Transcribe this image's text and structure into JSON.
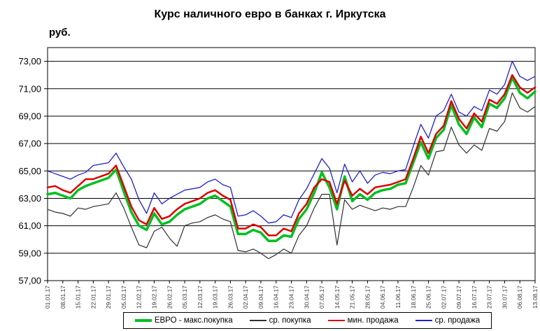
{
  "page": {
    "title": "Курс наличного евро в банках г. Иркутска",
    "y_axis_unit": "руб."
  },
  "chart_data": {
    "type": "line",
    "title": "Курс наличного евро в банках г. Иркутска",
    "xlabel": "",
    "ylabel": "руб.",
    "ylim": [
      57,
      74
    ],
    "ytick_step": 2,
    "grid": true,
    "legend_position": "bottom",
    "points_per_tick_interval": 2,
    "ytick_labels": [
      "57,00",
      "59,00",
      "61,00",
      "63,00",
      "65,00",
      "67,00",
      "69,00",
      "71,00",
      "73,00"
    ],
    "ytick_values": [
      57,
      59,
      61,
      63,
      65,
      67,
      69,
      71,
      73
    ],
    "xtick_labels": [
      "01.01.17",
      "08.01.17",
      "15.01.17",
      "22.01.17",
      "29.01.17",
      "05.02.17",
      "12.02.17",
      "19.02.17",
      "26.02.17",
      "05.03.17",
      "12.03.17",
      "19.03.17",
      "26.03.17",
      "02.04.17",
      "09.04.17",
      "16.04.17",
      "23.04.17",
      "30.04.17",
      "07.05.17",
      "14.05.17",
      "21.05.17",
      "28.05.17",
      "04.06.17",
      "11.06.17",
      "18.06.17",
      "25.06.17",
      "02.07.17",
      "09.07.17",
      "16.07.17",
      "23.07.17",
      "30.07.17",
      "06.08.17",
      "13.08.17"
    ],
    "series": [
      {
        "name": "ЕВРО - макс.покупка",
        "color": "#00c020",
        "line_width": 3.5,
        "values": [
          63.3,
          63.4,
          63.2,
          63.0,
          63.6,
          63.9,
          64.1,
          64.3,
          64.5,
          65.1,
          63.5,
          62.0,
          61.0,
          60.7,
          61.9,
          61.1,
          61.3,
          61.8,
          62.2,
          62.4,
          62.6,
          63.0,
          63.2,
          62.8,
          62.4,
          60.4,
          60.4,
          60.7,
          60.5,
          59.9,
          59.9,
          60.3,
          60.2,
          61.5,
          62.2,
          63.4,
          64.9,
          63.8,
          62.2,
          64.6,
          62.8,
          63.3,
          62.9,
          63.4,
          63.6,
          63.7,
          64.0,
          64.1,
          65.6,
          67.1,
          65.9,
          67.4,
          68.0,
          69.8,
          68.4,
          67.7,
          68.9,
          68.2,
          69.9,
          69.6,
          70.3,
          71.8,
          70.7,
          70.3,
          70.8
        ]
      },
      {
        "name": "ср. покупка",
        "color": "#303030",
        "line_width": 1.2,
        "values": [
          62.2,
          62.0,
          61.9,
          61.7,
          62.3,
          62.2,
          62.4,
          62.5,
          62.6,
          63.4,
          62.3,
          60.9,
          59.6,
          59.4,
          60.6,
          60.9,
          60.1,
          59.5,
          61.0,
          61.2,
          61.3,
          61.6,
          61.8,
          61.5,
          61.3,
          59.2,
          59.1,
          59.3,
          59.0,
          58.6,
          58.9,
          59.3,
          59.0,
          60.3,
          61.0,
          62.3,
          63.3,
          63.3,
          59.6,
          62.9,
          62.2,
          62.5,
          62.3,
          62.1,
          62.3,
          62.2,
          62.4,
          62.4,
          63.8,
          65.4,
          64.7,
          66.4,
          66.5,
          68.2,
          66.9,
          66.3,
          66.9,
          66.5,
          68.1,
          67.9,
          68.6,
          70.7,
          69.6,
          69.3,
          69.7
        ]
      },
      {
        "name": "мин. продажа",
        "color": "#dd0000",
        "line_width": 2.5,
        "values": [
          63.8,
          63.9,
          63.6,
          63.4,
          63.9,
          64.4,
          64.4,
          64.6,
          64.8,
          65.4,
          63.9,
          62.4,
          61.4,
          61.1,
          62.3,
          61.5,
          61.7,
          62.2,
          62.6,
          62.8,
          63.0,
          63.4,
          63.6,
          63.2,
          62.9,
          60.8,
          60.8,
          61.1,
          60.9,
          60.3,
          60.3,
          60.8,
          60.6,
          61.9,
          62.6,
          63.8,
          64.4,
          64.2,
          62.6,
          64.3,
          63.2,
          63.7,
          63.3,
          63.8,
          63.9,
          64.0,
          64.2,
          64.4,
          65.9,
          67.5,
          66.3,
          67.7,
          68.3,
          70.1,
          68.8,
          68.1,
          69.2,
          68.6,
          70.2,
          69.9,
          70.6,
          72.0,
          71.1,
          70.7,
          71.1
        ]
      },
      {
        "name": "ср. продажа",
        "color": "#2020cc",
        "line_width": 1.3,
        "values": [
          65.0,
          64.8,
          64.6,
          64.4,
          64.7,
          64.9,
          65.4,
          65.5,
          65.6,
          66.3,
          65.3,
          64.4,
          62.9,
          61.9,
          63.4,
          62.6,
          63.0,
          63.3,
          63.6,
          63.7,
          63.8,
          64.2,
          64.4,
          64.0,
          63.8,
          61.7,
          61.8,
          62.1,
          61.7,
          61.2,
          61.3,
          61.8,
          61.6,
          62.9,
          63.7,
          64.8,
          65.9,
          65.2,
          63.4,
          65.5,
          64.2,
          65.0,
          64.1,
          64.7,
          64.9,
          64.8,
          65.0,
          65.1,
          66.8,
          68.4,
          67.4,
          69.0,
          69.4,
          70.6,
          69.3,
          69.0,
          69.7,
          69.4,
          70.9,
          70.6,
          71.3,
          73.0,
          71.9,
          71.6,
          71.9
        ]
      }
    ]
  }
}
